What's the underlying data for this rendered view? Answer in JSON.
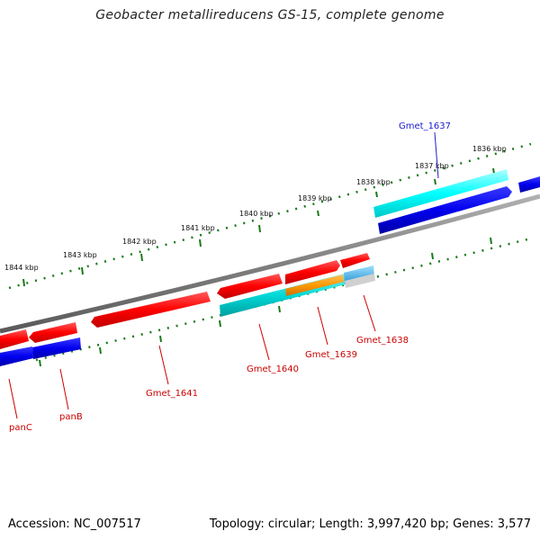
{
  "title": "Geobacter metallireducens GS-15, complete genome",
  "footer": {
    "accession": "Accession: NC_007517",
    "topology": "Topology: circular; Length: 3,997,420 bp; Genes: 3,577"
  },
  "kbp_labels": [
    "1836 kbp",
    "1837 kbp",
    "1838 kbp",
    "1839 kbp",
    "1840 kbp",
    "1841 kbp",
    "1842 kbp",
    "1843 kbp",
    "1844 kbp"
  ],
  "genes": [
    {
      "name": "Gmet_1637",
      "color": "#1a1ad0"
    },
    {
      "name": "Gmet_1638",
      "color": "#cc0000"
    },
    {
      "name": "Gmet_1639",
      "color": "#cc0000"
    },
    {
      "name": "Gmet_1640",
      "color": "#cc0000"
    },
    {
      "name": "Gmet_1641",
      "color": "#cc0000"
    },
    {
      "name": "panB",
      "color": "#cc0000"
    },
    {
      "name": "panC",
      "color": "#cc0000"
    }
  ],
  "colors": {
    "red_gene": "#ff0000",
    "blue_gene": "#0000ee",
    "cyan_feature": "#00dede",
    "orange_feature": "#ff9900",
    "backbone": "#808080",
    "ticks": "#1a7a1a"
  }
}
